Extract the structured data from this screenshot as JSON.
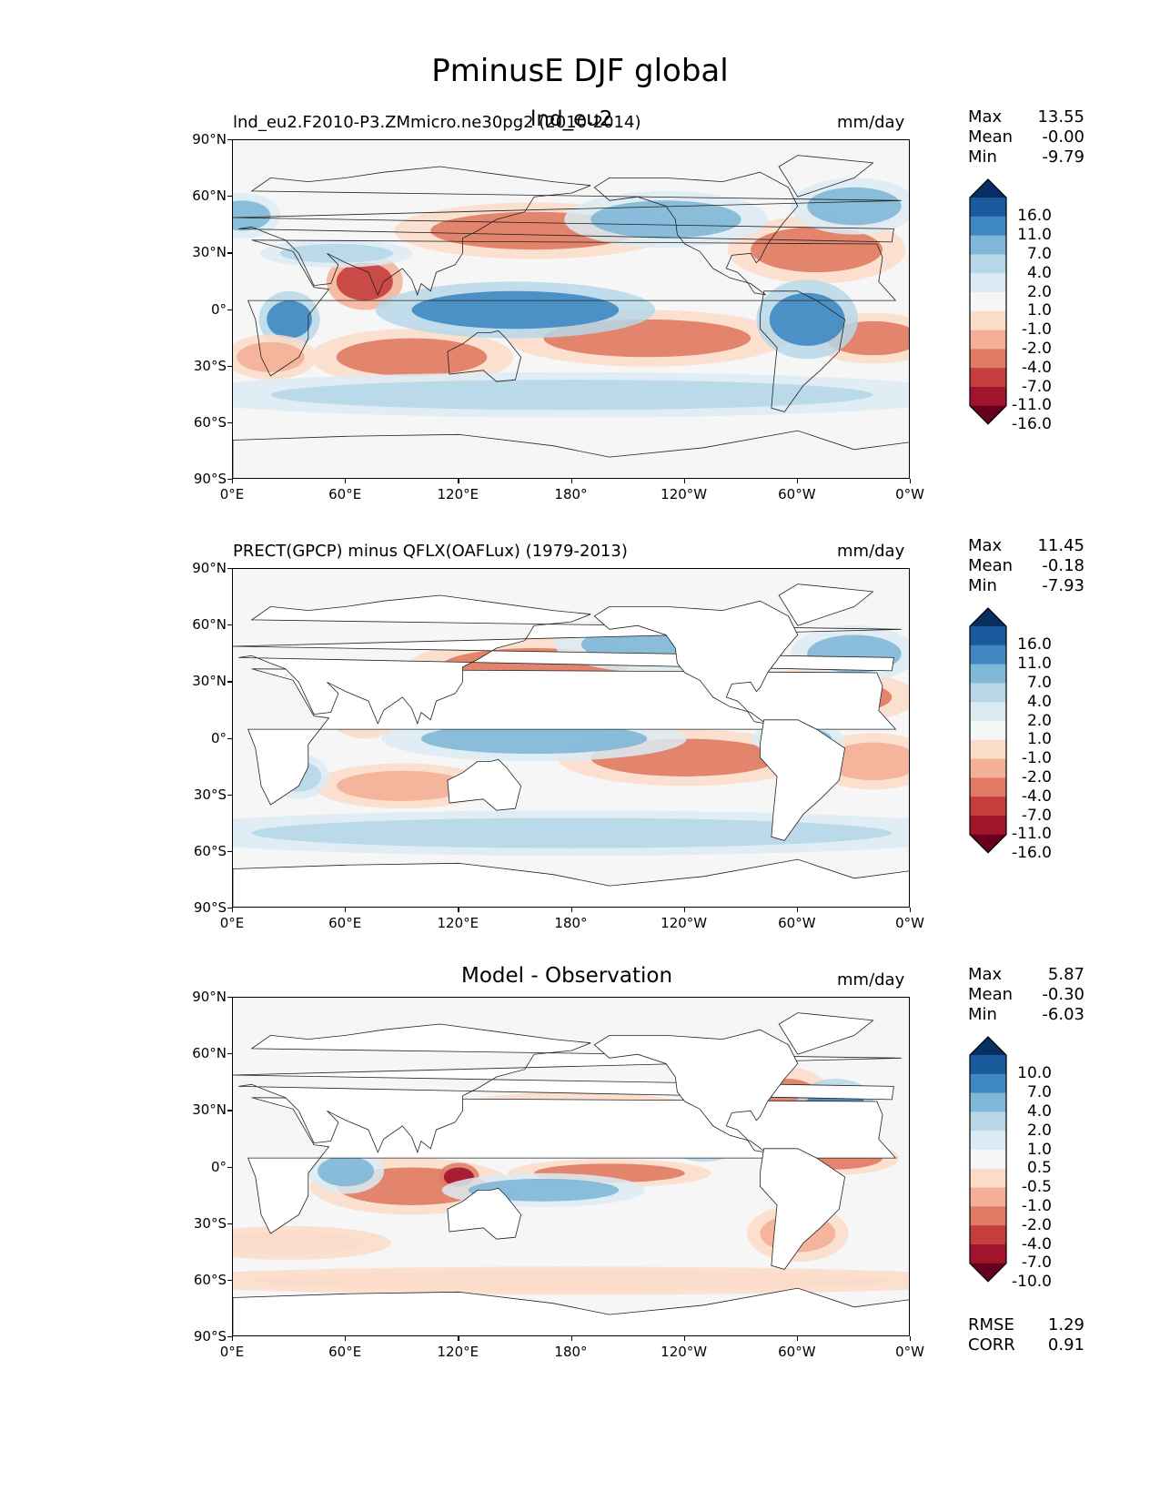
{
  "figure_title": "PminusE DJF global",
  "panels": [
    {
      "title_left": "lnd_eu2.F2010-P3.ZMmicro.ne30pg2 (2010-2014)",
      "title_center": "lnd_eu2",
      "units": "mm/day",
      "stats": [
        {
          "label": "Max",
          "value": "13.55"
        },
        {
          "label": "Mean",
          "value": "-0.00"
        },
        {
          "label": "Min",
          "value": "-9.79"
        }
      ],
      "colorbar_levels": [
        "16.0",
        "11.0",
        "7.0",
        "4.0",
        "2.0",
        "1.0",
        "-1.0",
        "-2.0",
        "-4.0",
        "-7.0",
        "-11.0",
        "-16.0"
      ]
    },
    {
      "title_left": "PRECT(GPCP) minus QFLX(OAFLux) (1979-2013)",
      "title_center": "",
      "units": "mm/day",
      "stats": [
        {
          "label": "Max",
          "value": "11.45"
        },
        {
          "label": "Mean",
          "value": "-0.18"
        },
        {
          "label": "Min",
          "value": "-7.93"
        }
      ],
      "colorbar_levels": [
        "16.0",
        "11.0",
        "7.0",
        "4.0",
        "2.0",
        "1.0",
        "-1.0",
        "-2.0",
        "-4.0",
        "-7.0",
        "-11.0",
        "-16.0"
      ]
    },
    {
      "title_left": "",
      "title_center": "Model - Observation",
      "units": "mm/day",
      "stats": [
        {
          "label": "Max",
          "value": "5.87"
        },
        {
          "label": "Mean",
          "value": "-0.30"
        },
        {
          "label": "Min",
          "value": "-6.03"
        }
      ],
      "colorbar_levels": [
        "10.0",
        "7.0",
        "4.0",
        "2.0",
        "1.0",
        "0.5",
        "-0.5",
        "-1.0",
        "-2.0",
        "-4.0",
        "-7.0",
        "-10.0"
      ],
      "metrics": [
        {
          "label": "RMSE",
          "value": "1.29"
        },
        {
          "label": "CORR",
          "value": "0.91"
        }
      ]
    }
  ],
  "lat_ticks": [
    "90°N",
    "60°N",
    "30°N",
    "0°",
    "30°S",
    "60°S",
    "90°S"
  ],
  "lon_ticks": [
    "0°E",
    "60°E",
    "120°E",
    "180°",
    "120°W",
    "60°W",
    "0°W"
  ],
  "colorbar_colors": [
    "#053061",
    "#2166ac",
    "#4393c3",
    "#92c5de",
    "#d1e5f0",
    "#f7f7f7",
    "#fddbc7",
    "#f4a582",
    "#d6604d",
    "#b2182b",
    "#67001f"
  ],
  "colorbar_colors_full": [
    "#053061",
    "#1c5a9e",
    "#3f88c1",
    "#7fb7d7",
    "#b7d7e8",
    "#dcebf3",
    "#f6f6f6",
    "#fbdcc9",
    "#f4b096",
    "#e07a62",
    "#c53e3d",
    "#a1142b",
    "#67001f"
  ]
}
